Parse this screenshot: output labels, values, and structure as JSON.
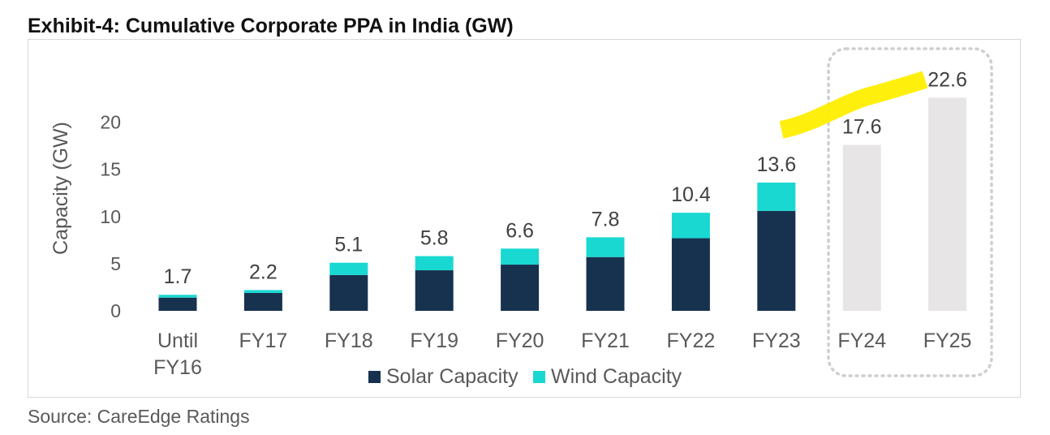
{
  "title": "Exhibit-4: Cumulative Corporate PPA in India (GW)",
  "source": "Source: CareEdge Ratings",
  "colors": {
    "solar": "#17324f",
    "wind": "#19d8d2",
    "projected": "#e7e5e5",
    "highlight": "#ffee00",
    "dotted_box": "#cfcfcf"
  },
  "chart_data": {
    "type": "bar",
    "stacked": true,
    "ylabel": "Capacity (GW)",
    "xlabel": "",
    "ylim": [
      0,
      25
    ],
    "yticks": [
      0,
      5,
      10,
      15,
      20
    ],
    "grid": false,
    "legend_position": "bottom",
    "categories": [
      [
        "Until",
        "FY16"
      ],
      [
        "FY17"
      ],
      [
        "FY18"
      ],
      [
        "FY19"
      ],
      [
        "FY20"
      ],
      [
        "FY21"
      ],
      [
        "FY22"
      ],
      [
        "FY23"
      ],
      [
        "FY24"
      ],
      [
        "FY25"
      ]
    ],
    "series": [
      {
        "name": "Solar Capacity",
        "values": [
          1.4,
          1.9,
          3.8,
          4.3,
          4.9,
          5.7,
          7.7,
          10.6,
          null,
          null
        ]
      },
      {
        "name": "Wind Capacity",
        "values": [
          0.3,
          0.3,
          1.3,
          1.5,
          1.7,
          2.1,
          2.7,
          3.0,
          null,
          null
        ]
      },
      {
        "name": "",
        "values": [
          null,
          null,
          null,
          null,
          null,
          null,
          null,
          null,
          17.6,
          22.6
        ]
      }
    ],
    "totals": [
      "1.7",
      "2.2",
      "5.1",
      "5.8",
      "6.6",
      "7.8",
      "10.4",
      "13.6",
      "17.6",
      "22.6"
    ],
    "legend": [
      "Solar Capacity",
      "Wind Capacity"
    ]
  }
}
